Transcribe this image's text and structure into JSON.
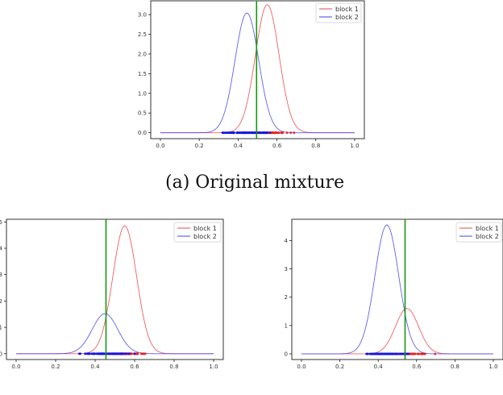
{
  "caption": "(a) Original mixture",
  "colors": {
    "block1": "#ee4444",
    "block2": "#4444ee",
    "threshold": "#119911",
    "point1": "#e82020",
    "point2": "#1414e0"
  },
  "chart_data": [
    {
      "type": "line",
      "legend": [
        "block 1",
        "block 2"
      ],
      "legend_position": "top-right",
      "xlim": [
        0,
        1
      ],
      "ylim": [
        -0.15,
        3.35
      ],
      "xticks": [
        "0.0",
        "0.2",
        "0.4",
        "0.6",
        "0.8",
        "1.0"
      ],
      "yticks": [
        "0.0",
        "0.5",
        "1.0",
        "1.5",
        "2.0",
        "2.5",
        "3.0"
      ],
      "threshold_x": 0.495,
      "series": [
        {
          "name": "block 1",
          "mean": 0.55,
          "sd": 0.061,
          "peak": 3.25
        },
        {
          "name": "block 2",
          "mean": 0.445,
          "sd": 0.061,
          "peak": 3.04
        }
      ],
      "points": [
        {
          "name": "block 1",
          "range": [
            0.34,
            0.76
          ]
        },
        {
          "name": "block 2",
          "range": [
            0.32,
            0.66
          ]
        }
      ]
    },
    {
      "type": "line",
      "legend": [
        "block 1",
        "block 2"
      ],
      "legend_position": "top-right",
      "xlim": [
        0,
        1
      ],
      "ylim": [
        -0.22,
        5.1
      ],
      "xticks": [
        "0.0",
        "0.2",
        "0.4",
        "0.6",
        "0.8",
        "1.0"
      ],
      "yticks": [
        "0",
        "1",
        "2",
        "3",
        "4",
        "5"
      ],
      "threshold_x": 0.455,
      "series": [
        {
          "name": "block 1",
          "mean": 0.55,
          "sd": 0.06,
          "peak": 4.85
        },
        {
          "name": "block 2",
          "mean": 0.45,
          "sd": 0.065,
          "peak": 1.52
        }
      ],
      "points": [
        {
          "name": "block 1",
          "range": [
            0.34,
            0.76
          ]
        },
        {
          "name": "block 2",
          "range": [
            0.32,
            0.66
          ]
        }
      ]
    },
    {
      "type": "line",
      "legend": [
        "block 1",
        "block 2"
      ],
      "legend_position": "top-right",
      "xlim": [
        0,
        1
      ],
      "ylim": [
        -0.2,
        4.75
      ],
      "xticks": [
        "0.0",
        "0.2",
        "0.4",
        "0.6",
        "0.8",
        "1.0"
      ],
      "yticks": [
        "0",
        "1",
        "2",
        "3",
        "4"
      ],
      "threshold_x": 0.54,
      "series": [
        {
          "name": "block 1",
          "mean": 0.55,
          "sd": 0.06,
          "peak": 1.6
        },
        {
          "name": "block 2",
          "mean": 0.445,
          "sd": 0.062,
          "peak": 4.55
        }
      ],
      "points": [
        {
          "name": "block 1",
          "range": [
            0.34,
            0.76
          ]
        },
        {
          "name": "block 2",
          "range": [
            0.32,
            0.66
          ]
        }
      ]
    }
  ]
}
